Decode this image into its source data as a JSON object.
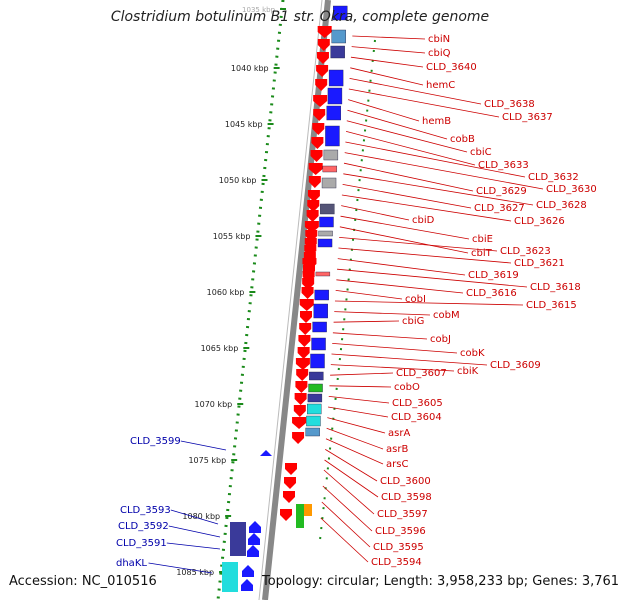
{
  "title": "Clostridium botulinum B1 str. Okra, complete genome",
  "accession": "Accession: NC_010516",
  "topology": "Topology: circular; Length: 3,958,233 bp; Genes: 3,761",
  "scale_labels": [
    "1035 kbp",
    "1040 kbp",
    "1045 kbp",
    "1050 kbp",
    "1055 kbp",
    "1060 kbp",
    "1065 kbp",
    "1070 kbp",
    "1075 kbp",
    "1080 kbp",
    "1085 kbp"
  ],
  "right_labels": [
    "cbiN",
    "cbiQ",
    "CLD_3640",
    "hemC",
    "CLD_3638",
    "CLD_3637",
    "hemB",
    "cobB",
    "cbiC",
    "CLD_3633",
    "CLD_3632",
    "CLD_3630",
    "CLD_3629",
    "CLD_3628",
    "CLD_3627",
    "CLD_3626",
    "cbiD",
    "cbiE",
    "cbiT",
    "CLD_3623",
    "CLD_3621",
    "CLD_3619",
    "CLD_3618",
    "CLD_3616",
    "cobI",
    "CLD_3615",
    "cobM",
    "cbiG",
    "cobJ",
    "cobK",
    "CLD_3609",
    "cbiK",
    "CLD_3607",
    "cobO",
    "CLD_3605",
    "CLD_3604",
    "asrA",
    "asrB",
    "arsC",
    "CLD_3600",
    "CLD_3598",
    "CLD_3597",
    "CLD_3596",
    "CLD_3595",
    "CLD_3594"
  ],
  "left_labels": [
    "CLD_3599",
    "CLD_3593",
    "CLD_3592",
    "CLD_3591",
    "dhaKL"
  ],
  "colors": {
    "reverse_gene": "#ff0000",
    "forward_gene": "#1a1aff",
    "right_label_text": "#cc0000",
    "left_label_text": "#0000aa",
    "scale_dots": "#1a8a1a",
    "backbone": "#888888",
    "blue": "#0000ee",
    "dark_blue": "#3a3a9a",
    "cyan": "#22dddd",
    "light_blue": "#5599cc",
    "green": "#22bb22",
    "orange": "#ff9900",
    "grey": "#aaaaaa",
    "pink": "#ff6666",
    "dark_slate": "#555577"
  }
}
